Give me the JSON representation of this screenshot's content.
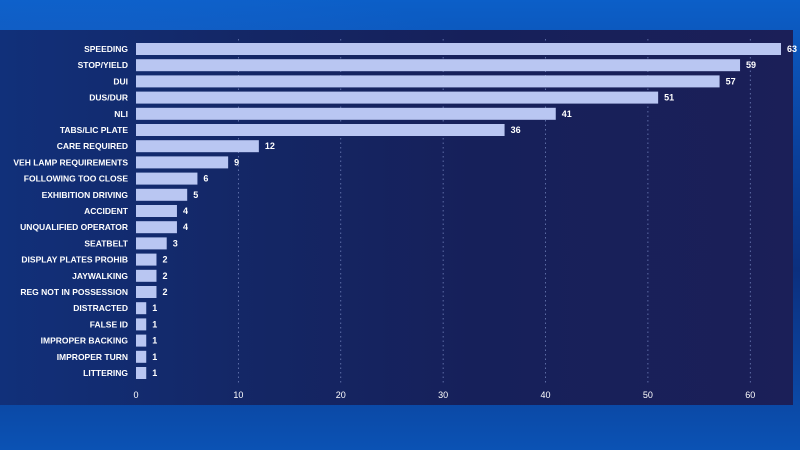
{
  "chart_data": {
    "type": "bar",
    "orientation": "horizontal",
    "categories": [
      "SPEEDING",
      "STOP/YIELD",
      "DUI",
      "DUS/DUR",
      "NLI",
      "TABS/LIC PLATE",
      "CARE REQUIRED",
      "VEH LAMP REQUIREMENTS",
      "FOLLOWING TOO CLOSE",
      "EXHIBITION DRIVING",
      "ACCIDENT",
      "UNQUALIFIED OPERATOR",
      "SEATBELT",
      "DISPLAY PLATES PROHIB",
      "JAYWALKING",
      "REG NOT IN POSSESSION",
      "DISTRACTED",
      "FALSE ID",
      "IMPROPER BACKING",
      "IMPROPER TURN",
      "LITTERING"
    ],
    "values": [
      63,
      59,
      57,
      51,
      41,
      36,
      12,
      9,
      6,
      5,
      4,
      4,
      3,
      2,
      2,
      2,
      1,
      1,
      1,
      1,
      1
    ],
    "xticks": [
      0,
      10,
      20,
      30,
      40,
      50,
      60
    ],
    "xlim": [
      0,
      63
    ],
    "title": "",
    "xlabel": "",
    "ylabel": "",
    "grid": true,
    "bar_color": "#b9c6f2"
  }
}
